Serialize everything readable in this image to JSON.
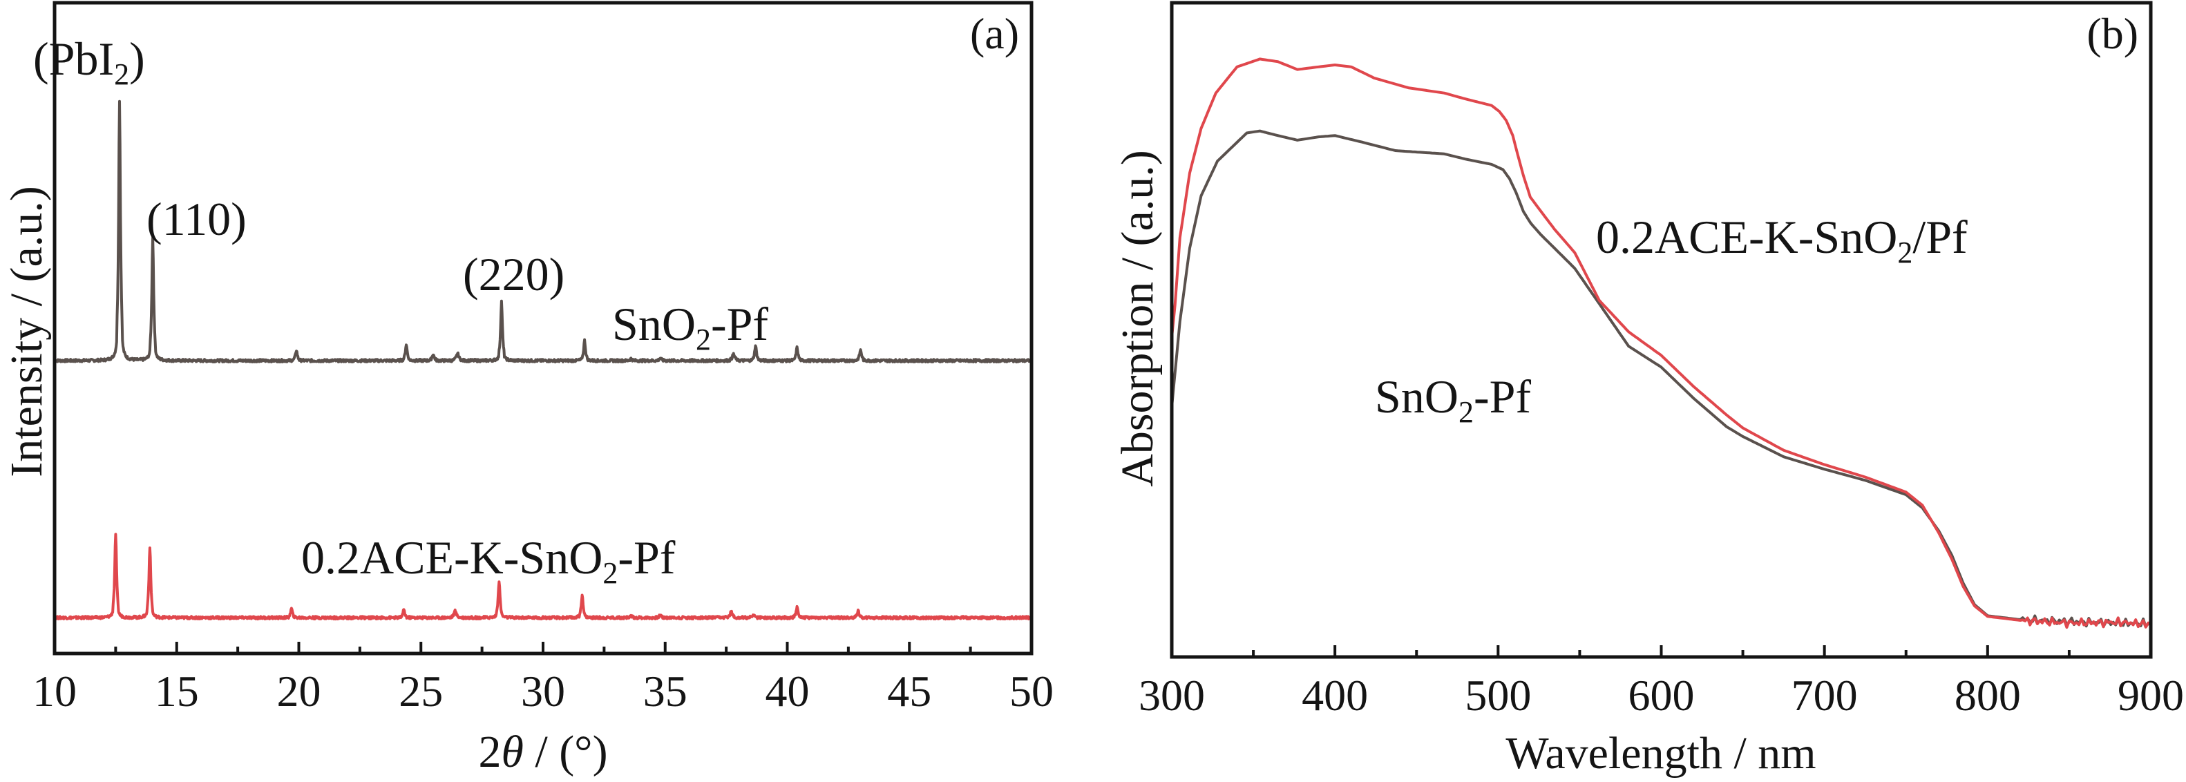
{
  "figure": {
    "colors": {
      "pristine": "#5a514d",
      "modified": "#e0474c",
      "axes": "#141414"
    }
  },
  "chart_data": [
    {
      "panel_label": "(a)",
      "type": "line",
      "title": "",
      "xlabel_parts": [
        "2",
        "θ",
        " / (°)"
      ],
      "xlabel": "2θ / (°)",
      "ylabel": "Intensity / (a.u.)",
      "xlim": [
        10,
        50
      ],
      "ylim": [
        0,
        1
      ],
      "xticks": [
        10,
        15,
        20,
        25,
        30,
        35,
        40,
        45,
        50
      ],
      "xtick_labels": [
        "10",
        "15",
        "20",
        "25",
        "30",
        "35",
        "40",
        "45",
        "50"
      ],
      "minor_xticks": [
        12.5,
        17.5,
        22.5,
        27.5,
        32.5,
        37.5,
        42.5,
        47.5
      ],
      "yticks": [],
      "grid": false,
      "legend": "none (inline labels)",
      "annotations": [
        {
          "text_parts": [
            "(PbI",
            "2",
            ")"
          ],
          "text": "(PbI2)",
          "x": 12.7,
          "series": "SnO2-Pf"
        },
        {
          "text_parts": [
            "(110)"
          ],
          "text": "(110)",
          "x": 14.0,
          "series": "SnO2-Pf"
        },
        {
          "text_parts": [
            "(220)"
          ],
          "text": "(220)",
          "x": 28.3,
          "series": "SnO2-Pf"
        }
      ],
      "series": [
        {
          "name": "SnO2-Pf",
          "label_parts": [
            "SnO",
            "2",
            "-Pf"
          ],
          "color_key": "pristine",
          "offset": 0.45,
          "peaks": [
            {
              "x": 12.66,
              "h": 0.4,
              "w": 0.09
            },
            {
              "x": 14.02,
              "h": 0.189,
              "w": 0.09
            },
            {
              "x": 19.9,
              "h": 0.016,
              "w": 0.09
            },
            {
              "x": 24.4,
              "h": 0.025,
              "w": 0.09
            },
            {
              "x": 25.5,
              "h": 0.01,
              "w": 0.1
            },
            {
              "x": 26.5,
              "h": 0.011,
              "w": 0.12
            },
            {
              "x": 28.3,
              "h": 0.091,
              "w": 0.09
            },
            {
              "x": 31.7,
              "h": 0.031,
              "w": 0.09
            },
            {
              "x": 33.6,
              "h": 0.003,
              "w": 0.1
            },
            {
              "x": 34.8,
              "h": 0.004,
              "w": 0.1
            },
            {
              "x": 37.8,
              "h": 0.01,
              "w": 0.12
            },
            {
              "x": 38.7,
              "h": 0.023,
              "w": 0.09
            },
            {
              "x": 40.4,
              "h": 0.02,
              "w": 0.09
            },
            {
              "x": 43.0,
              "h": 0.016,
              "w": 0.1
            }
          ]
        },
        {
          "name": "0.2ACE-K-SnO2-Pf",
          "label_parts": [
            "0.2ACE-K-SnO",
            "2",
            "-Pf"
          ],
          "color_key": "modified",
          "offset": 0.055,
          "peaks": [
            {
              "x": 12.5,
              "h": 0.129,
              "w": 0.09
            },
            {
              "x": 13.9,
              "h": 0.109,
              "w": 0.09
            },
            {
              "x": 19.7,
              "h": 0.014,
              "w": 0.09
            },
            {
              "x": 24.3,
              "h": 0.012,
              "w": 0.09
            },
            {
              "x": 26.4,
              "h": 0.01,
              "w": 0.12
            },
            {
              "x": 28.2,
              "h": 0.057,
              "w": 0.09
            },
            {
              "x": 31.6,
              "h": 0.035,
              "w": 0.09
            },
            {
              "x": 33.6,
              "h": 0.003,
              "w": 0.1
            },
            {
              "x": 34.8,
              "h": 0.004,
              "w": 0.1
            },
            {
              "x": 37.7,
              "h": 0.009,
              "w": 0.12
            },
            {
              "x": 38.6,
              "h": 0.005,
              "w": 0.1
            },
            {
              "x": 40.4,
              "h": 0.017,
              "w": 0.09
            },
            {
              "x": 42.9,
              "h": 0.011,
              "w": 0.1
            }
          ]
        }
      ]
    },
    {
      "panel_label": "(b)",
      "type": "line",
      "title": "",
      "xlabel": "Wavelength / nm",
      "ylabel": "Absorption / (a.u.)",
      "xlim": [
        300,
        900
      ],
      "ylim": [
        0,
        1
      ],
      "xticks": [
        300,
        400,
        500,
        600,
        700,
        800,
        900
      ],
      "xtick_labels": [
        "300",
        "400",
        "500",
        "600",
        "700",
        "800",
        "900"
      ],
      "minor_xticks": [
        350,
        450,
        550,
        650,
        750,
        850
      ],
      "yticks": [],
      "grid": false,
      "legend": "none (inline labels)",
      "series": [
        {
          "name": "SnO2-Pf",
          "label_parts": [
            "SnO",
            "2",
            "-Pf"
          ],
          "color_key": "pristine",
          "x": [
            300,
            305,
            311,
            318,
            328,
            346,
            354,
            365,
            377,
            390,
            400,
            415,
            437,
            467,
            480,
            496,
            503,
            507,
            511,
            515.5,
            520,
            526,
            534.5,
            547,
            562,
            580,
            600,
            620,
            640,
            650,
            675,
            700,
            725,
            750,
            760,
            770,
            778,
            785,
            792,
            800,
            820,
            850,
            880,
            900
          ],
          "y": [
            0.382,
            0.513,
            0.625,
            0.705,
            0.758,
            0.801,
            0.804,
            0.797,
            0.79,
            0.795,
            0.797,
            0.788,
            0.774,
            0.769,
            0.761,
            0.753,
            0.745,
            0.731,
            0.71,
            0.681,
            0.663,
            0.646,
            0.625,
            0.594,
            0.54,
            0.475,
            0.443,
            0.395,
            0.352,
            0.337,
            0.306,
            0.287,
            0.27,
            0.248,
            0.228,
            0.193,
            0.156,
            0.113,
            0.08,
            0.063,
            0.057,
            0.054,
            0.052,
            0.051
          ]
        },
        {
          "name": "0.2ACE-K-SnO2/Pf",
          "label_parts": [
            "0.2ACE-K-SnO",
            "2",
            "/Pf"
          ],
          "color_key": "modified",
          "x": [
            300,
            302,
            305,
            311,
            318,
            327,
            340,
            354,
            365,
            377,
            390,
            400,
            410,
            424,
            445,
            467,
            480,
            496,
            500.7,
            505,
            509,
            512,
            515.5,
            519.7,
            526,
            534.5,
            547,
            562,
            580,
            600,
            620,
            640,
            650,
            675,
            700,
            725,
            750,
            760,
            770,
            778,
            785,
            792,
            800,
            820,
            850,
            880,
            900
          ],
          "y": [
            0.489,
            0.538,
            0.641,
            0.74,
            0.808,
            0.862,
            0.902,
            0.914,
            0.91,
            0.898,
            0.902,
            0.905,
            0.902,
            0.885,
            0.87,
            0.862,
            0.853,
            0.843,
            0.834,
            0.82,
            0.797,
            0.768,
            0.736,
            0.703,
            0.682,
            0.654,
            0.618,
            0.545,
            0.497,
            0.461,
            0.413,
            0.37,
            0.35,
            0.316,
            0.294,
            0.275,
            0.252,
            0.232,
            0.19,
            0.15,
            0.108,
            0.078,
            0.062,
            0.056,
            0.052,
            0.053,
            0.05
          ]
        }
      ]
    }
  ]
}
